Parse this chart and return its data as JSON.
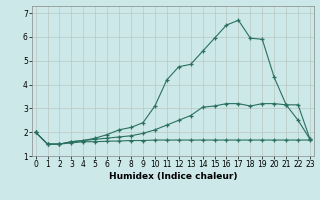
{
  "xlabel": "Humidex (Indice chaleur)",
  "background_color": "#cce8e8",
  "grid_color": "#b8c8c0",
  "line_color": "#2a7060",
  "x_ticks": [
    0,
    1,
    2,
    3,
    4,
    5,
    6,
    7,
    8,
    9,
    10,
    11,
    12,
    13,
    14,
    15,
    16,
    17,
    18,
    19,
    20,
    21,
    22,
    23
  ],
  "y_ticks": [
    1,
    2,
    3,
    4,
    5,
    6,
    7
  ],
  "ylim": [
    1.0,
    7.3
  ],
  "xlim": [
    -0.3,
    23.3
  ],
  "line1_x": [
    0,
    1,
    2,
    3,
    4,
    5,
    6,
    7,
    8,
    9,
    10,
    11,
    12,
    13,
    14,
    15,
    16,
    17,
    18,
    19,
    20,
    21,
    22,
    23
  ],
  "line1_y": [
    2.0,
    1.5,
    1.5,
    1.6,
    1.65,
    1.7,
    1.75,
    1.8,
    1.85,
    1.95,
    2.1,
    2.3,
    2.5,
    2.7,
    3.05,
    3.1,
    3.2,
    3.2,
    3.1,
    3.2,
    3.2,
    3.15,
    3.15,
    1.7
  ],
  "line2_x": [
    0,
    1,
    2,
    3,
    4,
    5,
    6,
    7,
    8,
    9,
    10,
    11,
    12,
    13,
    14,
    15,
    16,
    17,
    18,
    19,
    20,
    21,
    22,
    23
  ],
  "line2_y": [
    2.0,
    1.5,
    1.5,
    1.6,
    1.65,
    1.75,
    1.9,
    2.1,
    2.2,
    2.4,
    3.1,
    4.2,
    4.75,
    4.85,
    5.4,
    5.95,
    6.5,
    6.7,
    5.95,
    5.9,
    4.3,
    3.15,
    2.5,
    1.7
  ],
  "line3_x": [
    0,
    1,
    2,
    3,
    4,
    5,
    6,
    7,
    8,
    9,
    10,
    11,
    12,
    13,
    14,
    15,
    16,
    17,
    18,
    19,
    20,
    21,
    22,
    23
  ],
  "line3_y": [
    2.0,
    1.5,
    1.5,
    1.55,
    1.6,
    1.6,
    1.62,
    1.63,
    1.65,
    1.65,
    1.67,
    1.67,
    1.67,
    1.67,
    1.67,
    1.67,
    1.67,
    1.67,
    1.67,
    1.67,
    1.67,
    1.67,
    1.67,
    1.67
  ],
  "marker": "+"
}
